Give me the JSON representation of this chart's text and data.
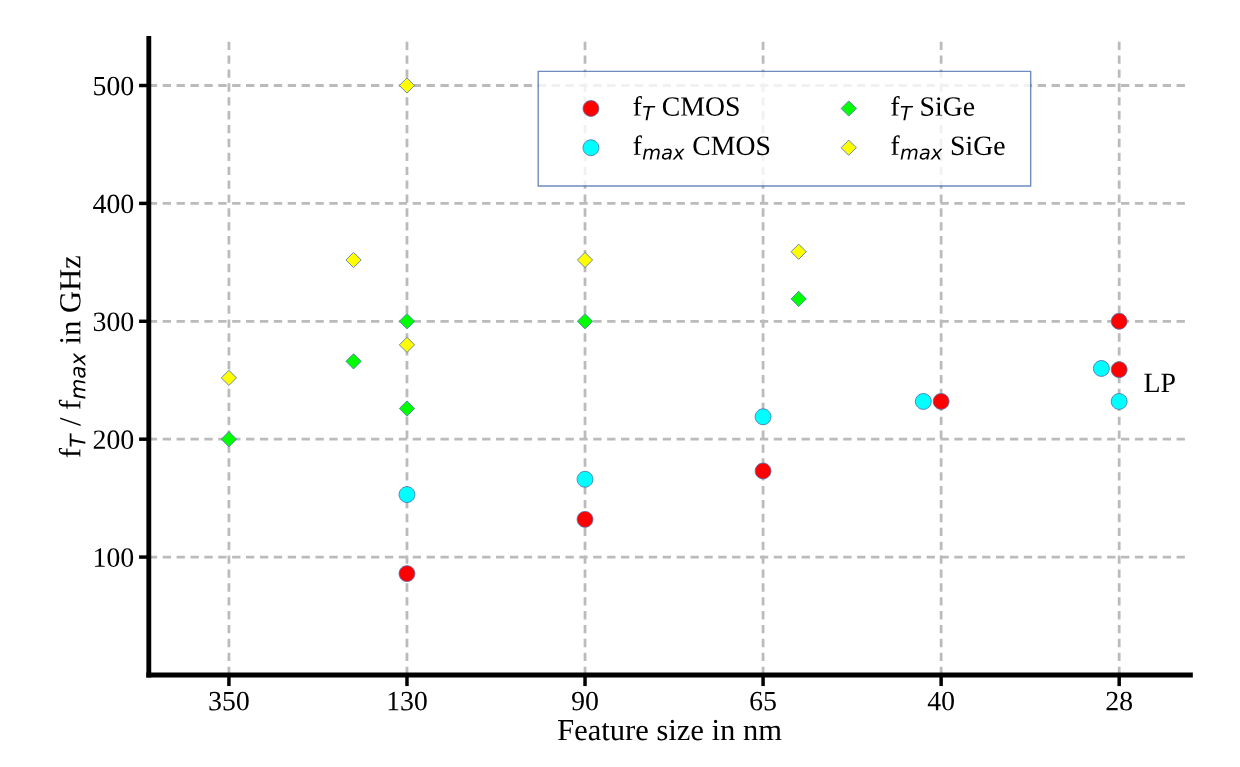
{
  "chart_data": {
    "type": "scatter",
    "xlabel": "Feature size in nm",
    "ylabel": "f$_{T}$ / f$_{max}$ in GHz",
    "categories": [
      "350",
      null,
      null,
      null,
      null,
      null,
      null,
      null,
      null,
      null,
      "130",
      null,
      null,
      null,
      null,
      null,
      null,
      null,
      null,
      null,
      "90",
      null,
      null,
      null,
      null,
      null,
      null,
      null,
      null,
      null,
      "65",
      null,
      null,
      null,
      null,
      null,
      null,
      null,
      null,
      null,
      "40",
      null,
      null,
      null,
      null,
      null,
      null,
      null,
      null,
      null,
      "28"
    ],
    "ylim": [
      0,
      540
    ],
    "yticks": [
      100,
      200,
      300,
      400,
      500
    ],
    "grid": true,
    "legend": "top right",
    "series": [
      {
        "name": "f$_{T}$ CMOS",
        "color": "#ff0000",
        "marker": "circle",
        "values": [
          null,
          null,
          null,
          null,
          null,
          null,
          null,
          null,
          null,
          null,
          86,
          null,
          null,
          null,
          null,
          null,
          null,
          null,
          null,
          null,
          132,
          null,
          null,
          null,
          null,
          null,
          null,
          null,
          null,
          null,
          173,
          null,
          null,
          null,
          null,
          null,
          null,
          null,
          null,
          null,
          232,
          null,
          null,
          null,
          null,
          null,
          null,
          null,
          null,
          null,
          300
        ]
      },
      {
        "color": "#ff0000",
        "marker": "circle",
        "values": [
          null,
          null,
          null,
          null,
          null,
          null,
          null,
          null,
          null,
          null,
          null,
          null,
          null,
          null,
          null,
          null,
          null,
          null,
          null,
          null,
          null,
          null,
          null,
          null,
          null,
          null,
          null,
          null,
          null,
          null,
          null,
          null,
          null,
          null,
          null,
          null,
          null,
          null,
          null,
          null,
          null,
          null,
          null,
          null,
          null,
          null,
          null,
          null,
          null,
          null,
          259
        ]
      },
      {
        "name": "f$_{max}$ CMOS",
        "color": "#00ffff",
        "marker": "circle",
        "values": [
          null,
          null,
          null,
          null,
          null,
          null,
          null,
          null,
          null,
          null,
          153,
          null,
          null,
          null,
          null,
          null,
          null,
          null,
          null,
          null,
          166,
          null,
          null,
          null,
          null,
          null,
          null,
          null,
          null,
          null,
          219,
          null,
          null,
          null,
          null,
          null,
          null,
          null,
          null,
          232,
          null,
          null,
          null,
          null,
          null,
          null,
          null,
          null,
          null,
          260,
          232
        ]
      },
      {
        "name": "f$_{T}$ SiGe",
        "color": "#00ff00",
        "marker": "diamond",
        "values": [
          200,
          null,
          null,
          null,
          null,
          null,
          null,
          266,
          null,
          null,
          300,
          null,
          null,
          null,
          null,
          null,
          null,
          null,
          null,
          null,
          300,
          null,
          null,
          null,
          null,
          null,
          null,
          null,
          null,
          null,
          null,
          null,
          319,
          null,
          null,
          null,
          null,
          null,
          null,
          null,
          null,
          null,
          null,
          null,
          null,
          null,
          null,
          null,
          null,
          null,
          null
        ]
      },
      {
        "color": "#00ff00",
        "marker": "diamond",
        "values": [
          null,
          null,
          null,
          null,
          null,
          null,
          null,
          null,
          null,
          null,
          226,
          null,
          null,
          null,
          null,
          null,
          null,
          null,
          null,
          null,
          null,
          null,
          null,
          null,
          null,
          null,
          null,
          null,
          null,
          null,
          null,
          null,
          null,
          null,
          null,
          null,
          null,
          null,
          null,
          null,
          null,
          null,
          null,
          null,
          null,
          null,
          null,
          null,
          null,
          null,
          null
        ]
      },
      {
        "name": "f$_{max}$ SiGe",
        "color": "#ffff00",
        "marker": "diamond",
        "values": [
          252,
          null,
          null,
          null,
          null,
          null,
          null,
          352,
          null,
          null,
          500,
          null,
          null,
          null,
          null,
          null,
          null,
          null,
          null,
          null,
          352,
          null,
          null,
          null,
          null,
          null,
          null,
          null,
          null,
          null,
          null,
          null,
          359,
          null,
          null,
          null,
          null,
          null,
          null,
          null,
          null,
          null,
          null,
          null,
          null,
          null,
          null,
          null,
          null,
          null,
          null
        ]
      },
      {
        "color": "#ffff00",
        "marker": "diamond",
        "values": [
          null,
          null,
          null,
          null,
          null,
          null,
          null,
          null,
          null,
          null,
          280,
          null,
          null,
          null,
          null,
          null,
          null,
          null,
          null,
          null,
          null,
          null,
          null,
          null,
          null,
          null,
          null,
          null,
          null,
          null,
          null,
          null,
          null,
          null,
          null,
          null,
          null,
          null,
          null,
          null,
          null,
          null,
          null,
          null,
          null,
          null,
          null,
          null,
          null,
          null,
          null
        ]
      }
    ],
    "annotations": [
      "LP"
    ]
  }
}
